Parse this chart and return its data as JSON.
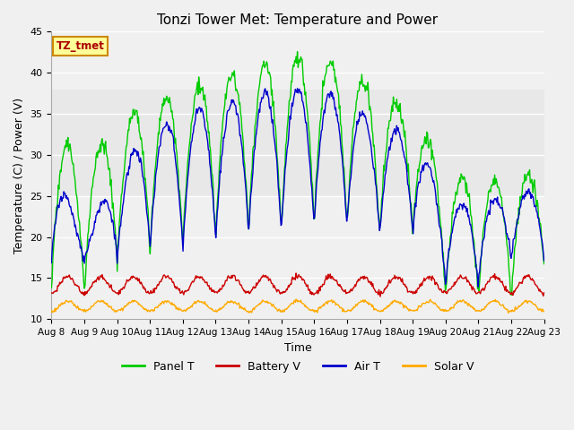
{
  "title": "Tonzi Tower Met: Temperature and Power",
  "xlabel": "Time",
  "ylabel": "Temperature (C) / Power (V)",
  "ylim": [
    10,
    45
  ],
  "xlim": [
    0,
    15
  ],
  "yticks": [
    10,
    15,
    20,
    25,
    30,
    35,
    40,
    45
  ],
  "xtick_labels": [
    "Aug 8",
    "Aug 9",
    "Aug 10",
    "Aug 11",
    "Aug 12",
    "Aug 13",
    "Aug 14",
    "Aug 15",
    "Aug 16",
    "Aug 17",
    "Aug 18",
    "Aug 19",
    "Aug 20",
    "Aug 21",
    "Aug 22",
    "Aug 23"
  ],
  "shade_ymin": 25,
  "shade_ymax": 38,
  "shade_color": "#e8e8e8",
  "line_colors": {
    "Panel T": "#00cc00",
    "Battery V": "#cc0000",
    "Air T": "#0000cc",
    "Solar V": "#ffaa00"
  },
  "annotation_text": "TZ_tmet",
  "annotation_bg": "#ffff99",
  "annotation_border": "#cc8800",
  "annotation_text_color": "#aa0000",
  "background_color": "#f0f0f0",
  "grid_color": "#ffffff"
}
